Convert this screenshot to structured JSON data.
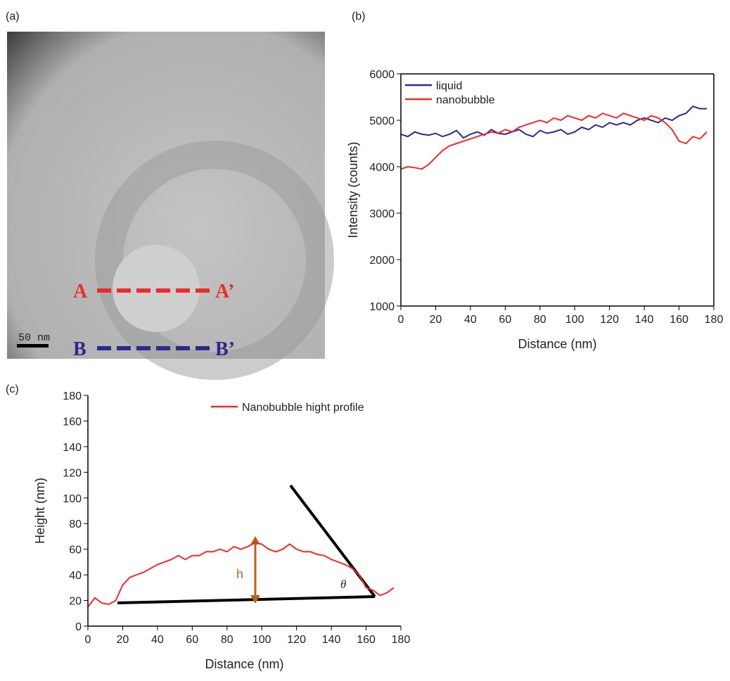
{
  "panel_labels": [
    "(a)",
    "(b)",
    "(c)"
  ],
  "micrograph": {
    "line_a_start": "A",
    "line_a_end": "A’",
    "line_b_start": "B",
    "line_b_end": "B’",
    "scale_bar": "50 nm"
  },
  "chart_data": [
    {
      "type": "line",
      "x_label": "Distance (nm)",
      "y_label": "Intensity (counts)",
      "x": [
        0,
        4,
        8,
        12,
        16,
        20,
        24,
        28,
        32,
        36,
        40,
        44,
        48,
        52,
        56,
        60,
        64,
        68,
        72,
        76,
        80,
        84,
        88,
        92,
        96,
        100,
        104,
        108,
        112,
        116,
        120,
        124,
        128,
        132,
        136,
        140,
        144,
        148,
        152,
        156,
        160,
        164,
        168,
        172,
        176
      ],
      "series": [
        {
          "name": "liquid",
          "color": "#2a2a8c",
          "values": [
            4700,
            4650,
            4750,
            4700,
            4680,
            4720,
            4650,
            4700,
            4780,
            4620,
            4700,
            4750,
            4680,
            4800,
            4720,
            4700,
            4750,
            4800,
            4700,
            4650,
            4780,
            4720,
            4750,
            4800,
            4700,
            4750,
            4850,
            4800,
            4900,
            4850,
            4950,
            4900,
            4950,
            4900,
            5000,
            5050,
            5000,
            4950,
            5050,
            5000,
            5100,
            5150,
            5300,
            5250,
            5250
          ]
        },
        {
          "name": "nanobubble",
          "color": "#ee2b2b",
          "values": [
            3950,
            4000,
            3980,
            3950,
            4050,
            4200,
            4350,
            4450,
            4500,
            4550,
            4600,
            4650,
            4700,
            4750,
            4720,
            4800,
            4750,
            4850,
            4900,
            4950,
            5000,
            4950,
            5050,
            5000,
            5100,
            5050,
            5000,
            5100,
            5050,
            5150,
            5100,
            5050,
            5150,
            5100,
            5050,
            5000,
            5100,
            5050,
            4950,
            4800,
            4550,
            4500,
            4650,
            4600,
            4750
          ]
        }
      ],
      "xlim": [
        0,
        180
      ],
      "xticks": [
        0,
        20,
        40,
        60,
        80,
        100,
        120,
        140,
        160,
        180
      ],
      "ylim": [
        1000,
        6000
      ],
      "yticks": [
        1000,
        2000,
        3000,
        4000,
        5000,
        6000
      ],
      "legend": "upper left"
    },
    {
      "type": "line",
      "x_label": "Distance (nm)",
      "y_label": "Height (nm)",
      "x": [
        0,
        4,
        8,
        12,
        16,
        20,
        24,
        28,
        32,
        36,
        40,
        44,
        48,
        52,
        56,
        60,
        64,
        68,
        72,
        76,
        80,
        84,
        88,
        92,
        96,
        100,
        104,
        108,
        112,
        116,
        120,
        124,
        128,
        132,
        136,
        140,
        144,
        148,
        152,
        156,
        160,
        164,
        168,
        172,
        176
      ],
      "series": [
        {
          "name": "Nanobubble hight profile",
          "color": "#ee2b2b",
          "values": [
            15,
            22,
            18,
            17,
            20,
            32,
            38,
            40,
            42,
            45,
            48,
            50,
            52,
            55,
            52,
            55,
            55,
            58,
            58,
            60,
            58,
            62,
            60,
            62,
            65,
            64,
            60,
            58,
            60,
            64,
            60,
            58,
            58,
            56,
            55,
            52,
            50,
            48,
            45,
            40,
            30,
            28,
            24,
            26,
            30
          ]
        }
      ],
      "xlim": [
        0,
        180
      ],
      "xticks": [
        0,
        20,
        40,
        60,
        80,
        100,
        120,
        140,
        160,
        180
      ],
      "ylim": [
        0,
        180
      ],
      "yticks": [
        0,
        20,
        40,
        60,
        80,
        100,
        120,
        140,
        160,
        180
      ],
      "legend": "upper right",
      "annotations": [
        "h",
        "θ"
      ]
    }
  ]
}
